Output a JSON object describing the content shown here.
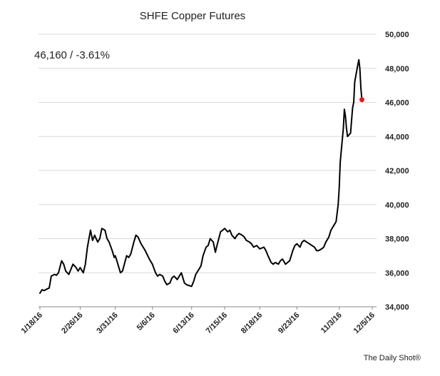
{
  "chart_data": {
    "type": "line",
    "title": "SHFE Copper Futures",
    "annotation": "46,160  /  -3.61%",
    "source": "The Daily Shot®",
    "xlabel": "",
    "ylabel": "",
    "ylim": [
      34000,
      50000
    ],
    "y_ticks": [
      34000,
      36000,
      38000,
      40000,
      42000,
      44000,
      46000,
      48000,
      50000
    ],
    "y_tick_labels": [
      "34,000",
      "36,000",
      "38,000",
      "40,000",
      "42,000",
      "44,000",
      "46,000",
      "48,000",
      "50,000"
    ],
    "x_ticks": [
      "2016-01-18",
      "2016-02-26",
      "2016-03-31",
      "2016-05-06",
      "2016-06-13",
      "2016-07-15",
      "2016-08-18",
      "2016-09-23",
      "2016-11-03",
      "2016-12-05"
    ],
    "x_tick_labels": [
      "1/18/16",
      "2/26/16",
      "3/31/16",
      "5/6/16",
      "6/13/16",
      "7/15/16",
      "8/18/16",
      "9/23/16",
      "11/3/16",
      "12/5/16"
    ],
    "grid": true,
    "line_color": "#000000",
    "end_marker_color": "#e8191d",
    "series": [
      {
        "name": "",
        "points": [
          [
            "2016-01-18",
            34800
          ],
          [
            "2016-01-20",
            35000
          ],
          [
            "2016-01-22",
            34950
          ],
          [
            "2016-01-25",
            35050
          ],
          [
            "2016-01-27",
            35100
          ],
          [
            "2016-01-29",
            35800
          ],
          [
            "2016-02-01",
            35900
          ],
          [
            "2016-02-03",
            35850
          ],
          [
            "2016-02-05",
            36000
          ],
          [
            "2016-02-08",
            36700
          ],
          [
            "2016-02-10",
            36500
          ],
          [
            "2016-02-12",
            36100
          ],
          [
            "2016-02-15",
            35900
          ],
          [
            "2016-02-17",
            36200
          ],
          [
            "2016-02-19",
            36500
          ],
          [
            "2016-02-22",
            36300
          ],
          [
            "2016-02-24",
            36100
          ],
          [
            "2016-02-26",
            36300
          ],
          [
            "2016-02-29",
            36000
          ],
          [
            "2016-03-02",
            36500
          ],
          [
            "2016-03-04",
            37500
          ],
          [
            "2016-03-07",
            38500
          ],
          [
            "2016-03-09",
            37900
          ],
          [
            "2016-03-11",
            38200
          ],
          [
            "2016-03-14",
            37800
          ],
          [
            "2016-03-16",
            38000
          ],
          [
            "2016-03-18",
            38600
          ],
          [
            "2016-03-21",
            38500
          ],
          [
            "2016-03-23",
            38000
          ],
          [
            "2016-03-25",
            37800
          ],
          [
            "2016-03-28",
            37300
          ],
          [
            "2016-03-30",
            36900
          ],
          [
            "2016-03-31",
            37000
          ],
          [
            "2016-04-01",
            36800
          ],
          [
            "2016-04-05",
            36000
          ],
          [
            "2016-04-07",
            36100
          ],
          [
            "2016-04-11",
            37000
          ],
          [
            "2016-04-13",
            36900
          ],
          [
            "2016-04-15",
            37100
          ],
          [
            "2016-04-18",
            37800
          ],
          [
            "2016-04-20",
            38200
          ],
          [
            "2016-04-22",
            38100
          ],
          [
            "2016-04-25",
            37700
          ],
          [
            "2016-04-27",
            37500
          ],
          [
            "2016-04-29",
            37300
          ],
          [
            "2016-05-03",
            36800
          ],
          [
            "2016-05-06",
            36500
          ],
          [
            "2016-05-09",
            36000
          ],
          [
            "2016-05-11",
            35800
          ],
          [
            "2016-05-13",
            35900
          ],
          [
            "2016-05-16",
            35800
          ],
          [
            "2016-05-18",
            35500
          ],
          [
            "2016-05-20",
            35300
          ],
          [
            "2016-05-23",
            35400
          ],
          [
            "2016-05-25",
            35700
          ],
          [
            "2016-05-27",
            35800
          ],
          [
            "2016-05-30",
            35600
          ],
          [
            "2016-06-01",
            35800
          ],
          [
            "2016-06-03",
            36000
          ],
          [
            "2016-06-06",
            35400
          ],
          [
            "2016-06-08",
            35300
          ],
          [
            "2016-06-13",
            35200
          ],
          [
            "2016-06-15",
            35500
          ],
          [
            "2016-06-17",
            35900
          ],
          [
            "2016-06-20",
            36200
          ],
          [
            "2016-06-22",
            36400
          ],
          [
            "2016-06-24",
            37000
          ],
          [
            "2016-06-27",
            37500
          ],
          [
            "2016-06-29",
            37600
          ],
          [
            "2016-07-01",
            38000
          ],
          [
            "2016-07-04",
            37800
          ],
          [
            "2016-07-06",
            37200
          ],
          [
            "2016-07-08",
            37700
          ],
          [
            "2016-07-11",
            38400
          ],
          [
            "2016-07-13",
            38500
          ],
          [
            "2016-07-15",
            38600
          ],
          [
            "2016-07-18",
            38400
          ],
          [
            "2016-07-20",
            38500
          ],
          [
            "2016-07-22",
            38200
          ],
          [
            "2016-07-25",
            38000
          ],
          [
            "2016-07-27",
            38200
          ],
          [
            "2016-07-29",
            38300
          ],
          [
            "2016-08-01",
            38200
          ],
          [
            "2016-08-03",
            38100
          ],
          [
            "2016-08-05",
            37900
          ],
          [
            "2016-08-08",
            37800
          ],
          [
            "2016-08-10",
            37700
          ],
          [
            "2016-08-12",
            37500
          ],
          [
            "2016-08-15",
            37600
          ],
          [
            "2016-08-18",
            37400
          ],
          [
            "2016-08-22",
            37500
          ],
          [
            "2016-08-24",
            37300
          ],
          [
            "2016-08-26",
            37000
          ],
          [
            "2016-08-29",
            36600
          ],
          [
            "2016-08-31",
            36500
          ],
          [
            "2016-09-02",
            36600
          ],
          [
            "2016-09-05",
            36500
          ],
          [
            "2016-09-07",
            36700
          ],
          [
            "2016-09-09",
            36800
          ],
          [
            "2016-09-12",
            36500
          ],
          [
            "2016-09-14",
            36600
          ],
          [
            "2016-09-16",
            36700
          ],
          [
            "2016-09-19",
            37300
          ],
          [
            "2016-09-21",
            37600
          ],
          [
            "2016-09-23",
            37700
          ],
          [
            "2016-09-26",
            37500
          ],
          [
            "2016-09-28",
            37800
          ],
          [
            "2016-09-30",
            37900
          ],
          [
            "2016-10-10",
            37500
          ],
          [
            "2016-10-12",
            37300
          ],
          [
            "2016-10-14",
            37300
          ],
          [
            "2016-10-17",
            37400
          ],
          [
            "2016-10-19",
            37500
          ],
          [
            "2016-10-21",
            37800
          ],
          [
            "2016-10-24",
            38100
          ],
          [
            "2016-10-26",
            38500
          ],
          [
            "2016-10-28",
            38700
          ],
          [
            "2016-10-31",
            39000
          ],
          [
            "2016-11-02",
            40000
          ],
          [
            "2016-11-03",
            41000
          ],
          [
            "2016-11-04",
            42500
          ],
          [
            "2016-11-07",
            44500
          ],
          [
            "2016-11-08",
            45600
          ],
          [
            "2016-11-09",
            45200
          ],
          [
            "2016-11-10",
            44500
          ],
          [
            "2016-11-11",
            44000
          ],
          [
            "2016-11-14",
            44200
          ],
          [
            "2016-11-15",
            45000
          ],
          [
            "2016-11-16",
            45700
          ],
          [
            "2016-11-17",
            46000
          ],
          [
            "2016-11-18",
            47200
          ],
          [
            "2016-11-21",
            48200
          ],
          [
            "2016-11-22",
            48500
          ],
          [
            "2016-11-23",
            48000
          ],
          [
            "2016-11-24",
            46800
          ],
          [
            "2016-11-25",
            46160
          ]
        ]
      }
    ]
  }
}
